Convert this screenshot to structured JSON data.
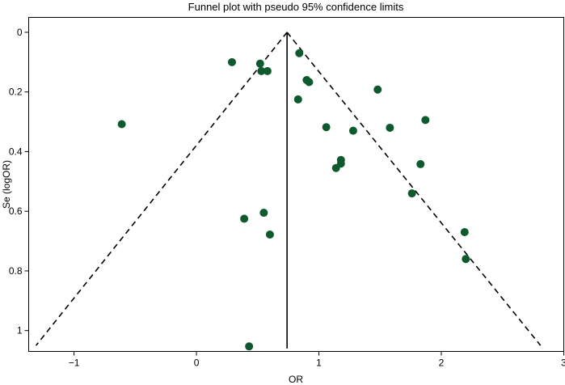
{
  "chart_data": {
    "type": "scatter",
    "title": "Funnel plot with pseudo 95% confidence limits",
    "xlabel": "OR",
    "ylabel": "Se (logOR)",
    "xlim": [
      -1.37,
      3.0
    ],
    "ylim": [
      1.07,
      -0.05
    ],
    "y_reversed": true,
    "x_ticks": [
      -1,
      0,
      1,
      2,
      3
    ],
    "x_tick_labels": [
      "−1",
      "0",
      "1",
      "2",
      "3"
    ],
    "y_ticks": [
      0,
      0.2,
      0.4,
      0.6,
      0.8,
      1
    ],
    "y_tick_labels": [
      "0",
      "0.2",
      "0.4",
      "0.6",
      "0.8",
      "1"
    ],
    "grid": false,
    "pooled_estimate": 0.74,
    "pooled_line_ymax": 1.06,
    "funnel_lines": [
      {
        "x": [
          0.74,
          -1.31
        ],
        "y": [
          0,
          1.05
        ]
      },
      {
        "x": [
          0.74,
          2.81
        ],
        "y": [
          0,
          1.05
        ]
      }
    ],
    "point_color": "#0e5a2e",
    "points": [
      {
        "x": 0.84,
        "y": 0.07
      },
      {
        "x": 0.29,
        "y": 0.1
      },
      {
        "x": 0.52,
        "y": 0.105
      },
      {
        "x": 0.53,
        "y": 0.13
      },
      {
        "x": 0.58,
        "y": 0.13
      },
      {
        "x": 0.9,
        "y": 0.16
      },
      {
        "x": 0.92,
        "y": 0.167
      },
      {
        "x": 1.48,
        "y": 0.192
      },
      {
        "x": 0.83,
        "y": 0.225
      },
      {
        "x": 1.87,
        "y": 0.294
      },
      {
        "x": -0.61,
        "y": 0.308
      },
      {
        "x": 1.06,
        "y": 0.318
      },
      {
        "x": 1.58,
        "y": 0.32
      },
      {
        "x": 1.28,
        "y": 0.33
      },
      {
        "x": 1.18,
        "y": 0.428
      },
      {
        "x": 1.18,
        "y": 0.44
      },
      {
        "x": 1.83,
        "y": 0.442
      },
      {
        "x": 1.14,
        "y": 0.455
      },
      {
        "x": 1.76,
        "y": 0.54
      },
      {
        "x": 0.55,
        "y": 0.605
      },
      {
        "x": 0.39,
        "y": 0.625
      },
      {
        "x": 2.19,
        "y": 0.67
      },
      {
        "x": 0.6,
        "y": 0.678
      },
      {
        "x": 2.2,
        "y": 0.76
      },
      {
        "x": 0.43,
        "y": 1.053
      }
    ]
  }
}
